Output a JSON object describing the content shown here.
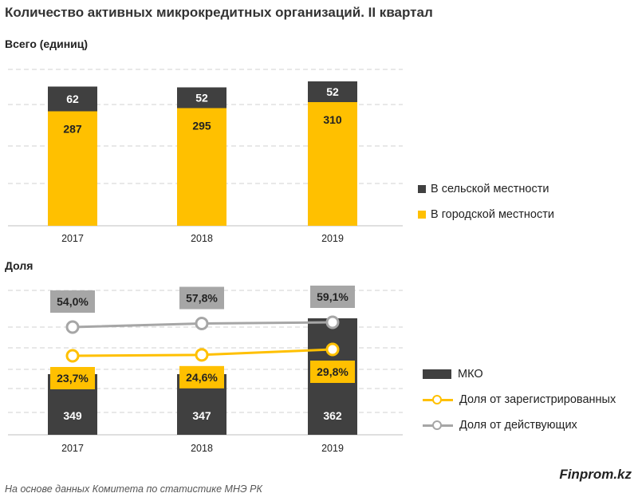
{
  "title": "Количество активных микрокредитных организаций. II квартал",
  "brand": "Finprom.kz",
  "source": "На основе данных  Комитета по статистике МНЭ РК",
  "colors": {
    "dark": "#404040",
    "yellow": "#FFC000",
    "gray": "#A6A6A6",
    "grid": "#D0D0D0"
  },
  "chart_data": [
    {
      "type": "bar",
      "subtitle": "Всего (единиц)",
      "stacked": true,
      "categories": [
        "2017",
        "2018",
        "2019"
      ],
      "series": [
        {
          "name": "В городской местности",
          "values": [
            287,
            295,
            310
          ],
          "color": "#FFC000"
        },
        {
          "name": "В сельской местности",
          "values": [
            62,
            52,
            52
          ],
          "color": "#404040"
        }
      ],
      "ylim": [
        0,
        400
      ],
      "legend": "right"
    },
    {
      "type": "bar+line",
      "subtitle": "Доля",
      "categories": [
        "2017",
        "2018",
        "2019"
      ],
      "bar_series": {
        "name": "МКО",
        "values": [
          349,
          347,
          362
        ],
        "color": "#404040"
      },
      "line_series": [
        {
          "name": "Доля от зарегистрированных",
          "values": [
            23.7,
            24.6,
            29.8
          ],
          "labels": [
            "23,7%",
            "24,6%",
            "29,8%"
          ],
          "color": "#FFC000"
        },
        {
          "name": "Доля от действующих",
          "values": [
            54.0,
            57.8,
            59.1
          ],
          "labels": [
            "54,0%",
            "57,8%",
            "59,1%"
          ],
          "color": "#A6A6A6"
        }
      ],
      "legend": "right"
    }
  ]
}
